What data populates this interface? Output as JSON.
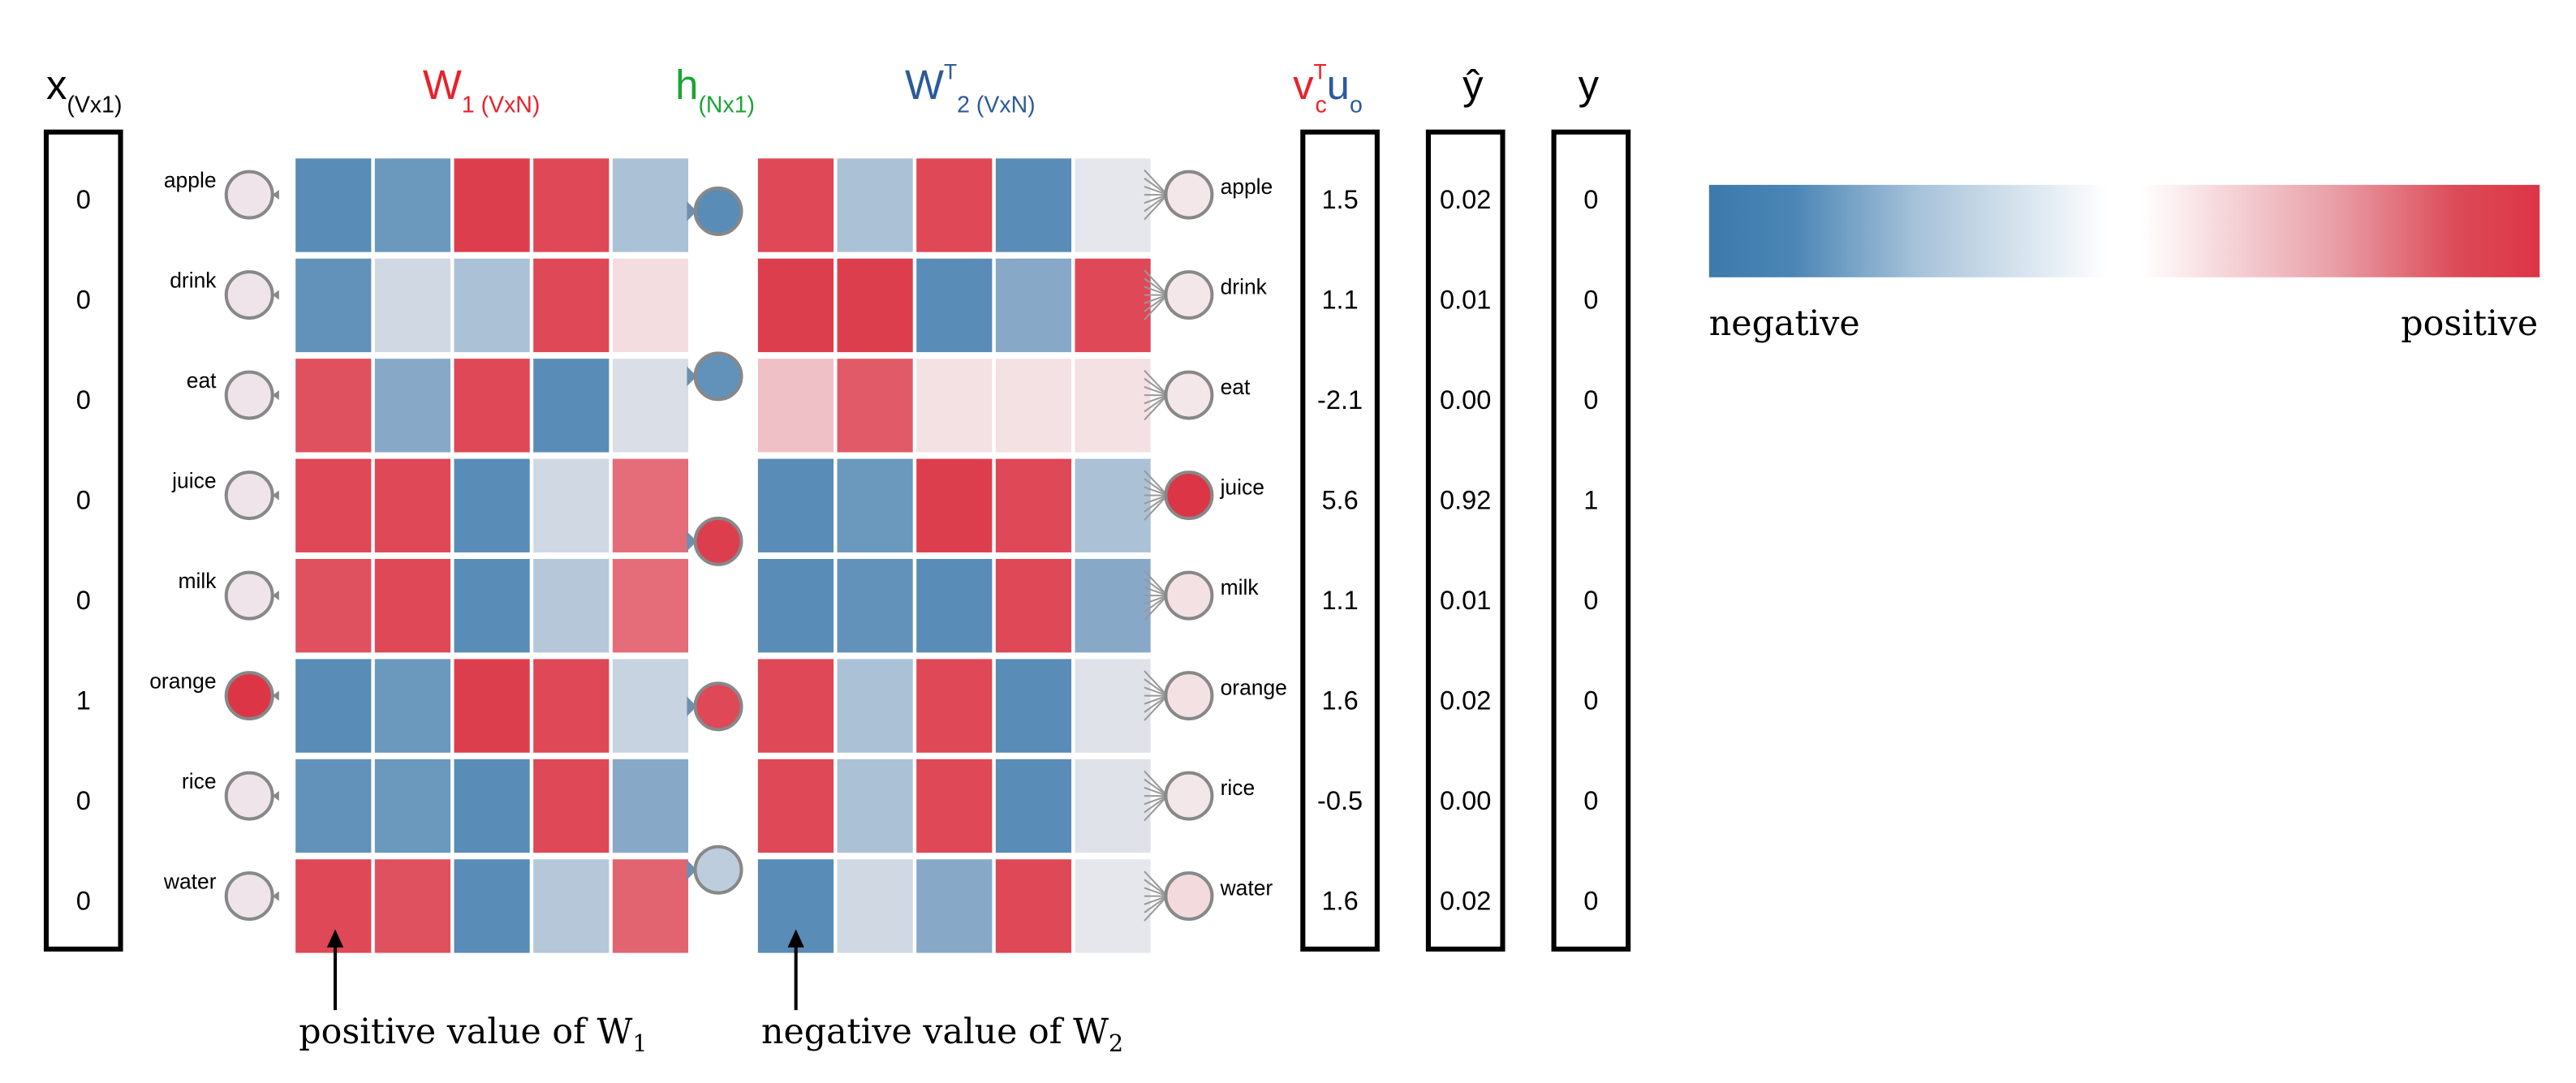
{
  "headers": {
    "x": {
      "main": "x",
      "sub": "(Vx1)"
    },
    "w1": {
      "main": "W",
      "sub": "1 (VxN)"
    },
    "h": {
      "main": "h",
      "sub": "(Nx1)"
    },
    "w2": {
      "main": "W",
      "sup": "T",
      "sub": "2 (VxN)"
    },
    "score": {
      "v": "v",
      "v_sup": "T",
      "v_sub": "c",
      "u": "u",
      "u_sub": "o"
    },
    "yhat": "ŷ",
    "y": "y"
  },
  "words": [
    "apple",
    "drink",
    "eat",
    "juice",
    "milk",
    "orange",
    "rice",
    "water"
  ],
  "x_values": [
    "0",
    "0",
    "0",
    "0",
    "0",
    "1",
    "0",
    "0"
  ],
  "w1_matrix": [
    [
      -0.85,
      -0.75,
      0.95,
      0.9,
      -0.4
    ],
    [
      -0.8,
      -0.2,
      -0.4,
      0.9,
      0.1
    ],
    [
      0.85,
      -0.6,
      0.9,
      -0.85,
      -0.15
    ],
    [
      0.9,
      0.9,
      -0.85,
      -0.2,
      0.7
    ],
    [
      0.85,
      0.9,
      -0.85,
      -0.35,
      0.7
    ],
    [
      -0.85,
      -0.75,
      0.95,
      0.9,
      -0.25
    ],
    [
      -0.8,
      -0.75,
      -0.85,
      0.9,
      -0.6
    ],
    [
      0.9,
      0.85,
      -0.85,
      -0.35,
      0.75
    ]
  ],
  "hidden_units": [
    -0.85,
    -0.8,
    0.95,
    0.9,
    -0.3
  ],
  "w2_matrix": [
    [
      0.9,
      -0.4,
      0.9,
      -0.85,
      -0.08
    ],
    [
      0.95,
      0.95,
      -0.85,
      -0.6,
      0.9
    ],
    [
      0.25,
      0.8,
      0.08,
      0.08,
      0.08
    ],
    [
      -0.85,
      -0.75,
      0.95,
      0.9,
      -0.4
    ],
    [
      -0.85,
      -0.8,
      -0.85,
      0.9,
      -0.6
    ],
    [
      0.9,
      -0.4,
      0.9,
      -0.85,
      -0.12
    ],
    [
      0.9,
      -0.4,
      0.9,
      -0.85,
      -0.12
    ],
    [
      -0.85,
      -0.2,
      -0.6,
      0.9,
      -0.08
    ]
  ],
  "output_nodes": [
    0.05,
    0.05,
    0.05,
    0.92,
    0.08,
    0.08,
    0.05,
    0.12
  ],
  "scores": [
    "1.5",
    "1.1",
    "-2.1",
    "5.6",
    "1.1",
    "1.6",
    "-0.5",
    "1.6"
  ],
  "yhat_values": [
    "0.02",
    "0.01",
    "0.00",
    "0.92",
    "0.01",
    "0.02",
    "0.00",
    "0.02"
  ],
  "y_values": [
    "0",
    "0",
    "0",
    "1",
    "0",
    "0",
    "0",
    "0"
  ],
  "legend": {
    "negative": "negative",
    "positive": "positive"
  },
  "annotations": {
    "w1": {
      "text": "positive value of W",
      "sub": "1"
    },
    "w2": {
      "text": "negative value of W",
      "sub": "2"
    }
  },
  "colors": {
    "negative": "#3d7aab",
    "positive": "#dc3545",
    "neutral": "#f5f0f2",
    "x_accent": "#000000",
    "w1_accent": "#e8212c",
    "h_accent": "#1aa534",
    "w2_accent": "#2c5a9c"
  }
}
